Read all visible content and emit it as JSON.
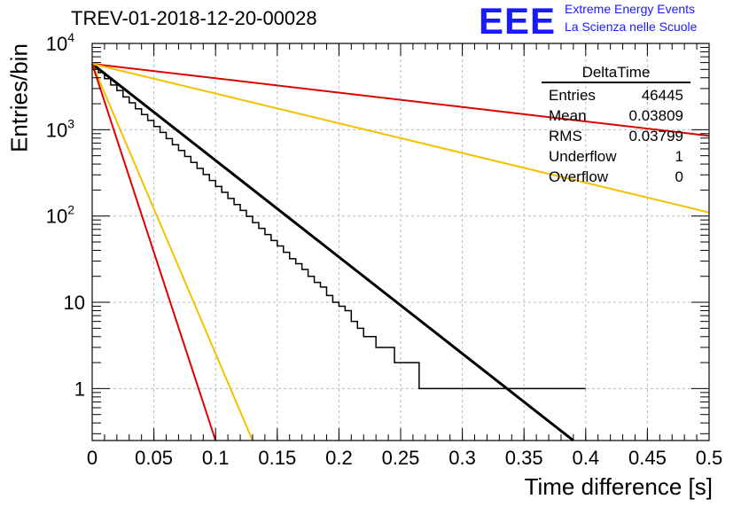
{
  "header": {
    "title": "TREV-01-2018-12-20-00028",
    "logo_text": "EEE",
    "logo_line1": "Extreme Energy Events",
    "logo_line2": "La Scienza nelle Scuole"
  },
  "stats": {
    "title": "DeltaTime",
    "rows": [
      {
        "label": "Entries",
        "value": "46445"
      },
      {
        "label": "Mean",
        "value": "0.03809"
      },
      {
        "label": "RMS",
        "value": "0.03799"
      },
      {
        "label": "Underflow",
        "value": "1"
      },
      {
        "label": "Overflow",
        "value": "0"
      }
    ]
  },
  "colors": {
    "histogram": "#000000",
    "fit": "#000000",
    "red_line": "#e00000",
    "yellow_line": "#f5c000",
    "grid": "#bbbbbb",
    "logo": "#1a1aff"
  },
  "chart_data": {
    "type": "line",
    "title": "TREV-01-2018-12-20-00028",
    "xlabel": "Time difference [s]",
    "ylabel": "Entries/bin",
    "xlim": [
      0,
      0.5
    ],
    "ylim": [
      0.25,
      10000
    ],
    "yscale": "log",
    "grid": true,
    "x_ticks": [
      "0",
      "0.05",
      "0.1",
      "0.15",
      "0.2",
      "0.25",
      "0.3",
      "0.35",
      "0.4",
      "0.45",
      "0.5"
    ],
    "y_ticks": [
      "1",
      "10",
      "10^2",
      "10^3",
      "10^4"
    ],
    "histogram": {
      "name": "DeltaTime",
      "bin_width": 0.005,
      "x_start": 0,
      "values": [
        5200,
        4600,
        3900,
        3300,
        2850,
        2400,
        2050,
        1750,
        1500,
        1280,
        1090,
        930,
        790,
        670,
        575,
        490,
        418,
        356,
        303,
        258,
        220,
        188,
        160,
        136,
        116,
        99,
        84,
        72,
        61,
        52,
        45,
        38,
        32,
        28,
        24,
        20,
        17,
        15,
        12,
        10,
        9,
        8,
        6,
        5,
        4,
        4,
        3,
        3,
        3,
        2,
        2,
        2,
        2,
        1,
        1,
        1,
        1,
        1,
        1,
        1,
        1,
        1,
        1,
        1,
        1,
        1,
        1,
        1,
        1,
        1,
        1,
        1,
        1,
        1,
        1,
        1,
        1,
        1,
        1,
        1
      ],
      "values_note": ""
    },
    "series": [
      {
        "name": "",
        "color": "black",
        "kind": "fit",
        "x": [
          0.0,
          0.39
        ],
        "y": [
          5800,
          0.25
        ]
      },
      {
        "name": "",
        "color": "red",
        "kind": "line",
        "x": [
          0.0,
          0.5
        ],
        "y": [
          5800,
          850
        ]
      },
      {
        "name": "",
        "color": "orange",
        "kind": "line",
        "x": [
          0.0,
          0.5
        ],
        "y": [
          5800,
          110
        ]
      },
      {
        "name": "",
        "color": "orange",
        "kind": "line",
        "x": [
          0.0,
          0.13
        ],
        "y": [
          5800,
          0.25
        ]
      },
      {
        "name": "",
        "color": "red",
        "kind": "line",
        "x": [
          0.0,
          0.1
        ],
        "y": [
          5800,
          0.25
        ]
      }
    ]
  }
}
